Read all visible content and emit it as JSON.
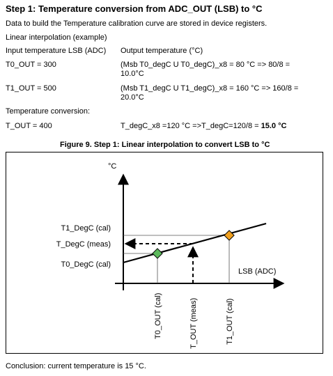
{
  "heading": "Step 1: Temperature conversion from ADC_OUT (LSB) to °C",
  "intro": "Data to build the Temperature calibration curve are stored in device registers.",
  "linear_label": "Linear interpolation (example)",
  "col_input": "Input temperature LSB (ADC)",
  "col_output": "Output temperature (°C)",
  "t0_input": "T0_OUT = 300",
  "t0_line1": "(Msb T0_degC U T0_degC)_x8 = 80 °C => 80/8 =",
  "t0_line2": "10.0°C",
  "t1_input": "T1_OUT = 500",
  "t1_line1": "(Msb T1_degC U T1_degC)_x8 = 160 °C => 160/8 =",
  "t1_line2": "20.0°C",
  "conversion_label": "Temperature conversion:",
  "tout_input": "T_OUT = 400",
  "tout_calc_prefix": "T_degC_x8 =120 °C =>T_degC=120/8 = ",
  "tout_calc_bold": "15.0 °C",
  "figure_caption": "Figure 9. Step 1: Linear interpolation to convert LSB to °C",
  "diagram": {
    "y_unit": "°C",
    "y_t1": "T1_DegC (cal)",
    "y_meas": "T_DegC (meas)",
    "y_t0": "T0_DegC (cal)",
    "x_axis": "LSB (ADC)",
    "x_t0": "T0_OUT (cal)",
    "x_tout": "T_OUT (meas)",
    "x_t1": "T1_OUT (cal)",
    "green_marker_color": "#5cb85c",
    "orange_marker_color": "#f0a020"
  },
  "conclusion": "Conclusion: current temperature is 15 °C."
}
